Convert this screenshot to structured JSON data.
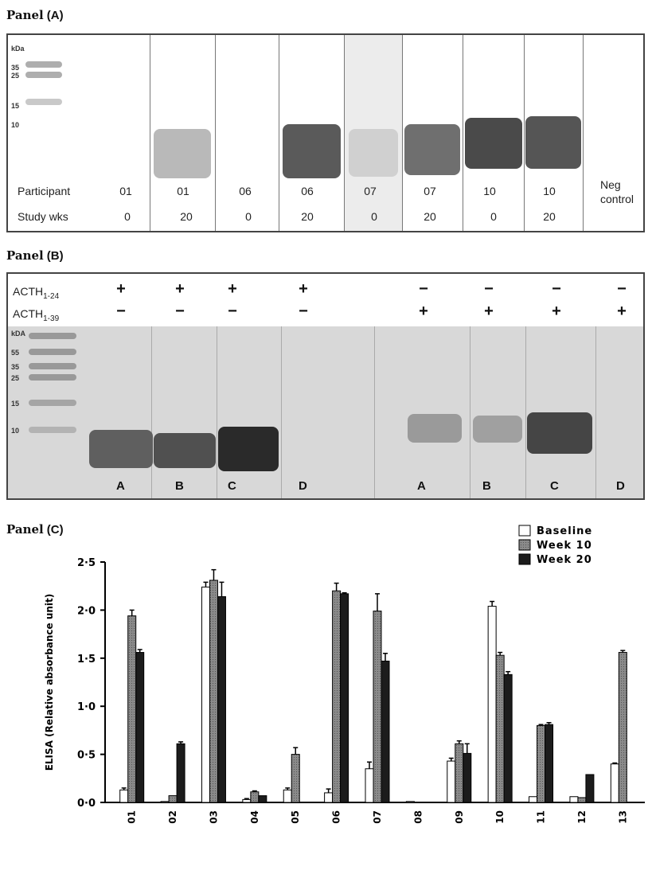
{
  "panelA": {
    "title_word": "Panel",
    "title_letter": "(A)",
    "kda": "kDa",
    "markers": [
      "35",
      "25",
      "15",
      "10"
    ],
    "row1_label": "Participant",
    "row2_label": "Study wks",
    "participants": [
      "01",
      "01",
      "06",
      "06",
      "07",
      "07",
      "10",
      "10"
    ],
    "weeks": [
      "0",
      "20",
      "0",
      "20",
      "0",
      "20",
      "0",
      "20"
    ],
    "neg_line1": "Neg",
    "neg_line2": "control"
  },
  "panelB": {
    "title_word": "Panel",
    "title_letter": "(B)",
    "row1_label": "ACTH",
    "row1_sub": "1-24",
    "row2_label": "ACTH",
    "row2_sub": "1-39",
    "row1_signs": [
      "+",
      "+",
      "+",
      "+",
      "−",
      "−",
      "−",
      "−"
    ],
    "row2_signs": [
      "−",
      "−",
      "−",
      "−",
      "+",
      "+",
      "+",
      "+"
    ],
    "kda": "kDA",
    "markers": [
      "55",
      "35",
      "25",
      "15",
      "10"
    ],
    "lanes": [
      "A",
      "B",
      "C",
      "D",
      "A",
      "B",
      "C",
      "D"
    ]
  },
  "panelC": {
    "title_word": "Panel",
    "title_letter": "(C)"
  },
  "chart_data": {
    "type": "bar",
    "title": "",
    "ylabel": "ELISA (Relative absorbance unit)",
    "xlabel": "",
    "ylim": [
      0,
      2.5
    ],
    "yticks": [
      "0·0",
      "0·5",
      "1·0",
      "1·5",
      "2·0",
      "2·5"
    ],
    "categories": [
      "01",
      "02",
      "03",
      "04",
      "05",
      "06",
      "07",
      "08",
      "09",
      "10",
      "11",
      "12",
      "13"
    ],
    "legend_position": "top-right",
    "series": [
      {
        "name": "Baseline",
        "color": "#ffffff",
        "values": [
          0.13,
          0.01,
          2.24,
          0.03,
          0.13,
          0.1,
          0.35,
          0.01,
          0.43,
          2.04,
          0.06,
          0.06,
          0.4
        ],
        "errors": [
          0.02,
          0.0,
          0.05,
          0.01,
          0.02,
          0.04,
          0.07,
          0.0,
          0.03,
          0.05,
          0.0,
          0.0,
          0.01
        ]
      },
      {
        "name": "Week 10",
        "color": "#7d7d7d",
        "values": [
          1.94,
          0.07,
          2.31,
          0.11,
          0.5,
          2.2,
          1.99,
          0.0,
          0.61,
          1.53,
          0.8,
          0.05,
          1.56
        ],
        "errors": [
          0.06,
          0.0,
          0.11,
          0.01,
          0.07,
          0.08,
          0.18,
          0.0,
          0.03,
          0.03,
          0.01,
          0.0,
          0.02
        ]
      },
      {
        "name": "Week 20",
        "color": "#1c1c1c",
        "values": [
          1.56,
          0.61,
          2.14,
          0.07,
          0.0,
          2.17,
          1.47,
          0.0,
          0.51,
          1.33,
          0.81,
          0.29,
          0.0
        ],
        "errors": [
          0.03,
          0.02,
          0.15,
          0.0,
          0.0,
          0.01,
          0.08,
          0.0,
          0.1,
          0.03,
          0.02,
          0.0,
          0.0
        ]
      }
    ]
  }
}
